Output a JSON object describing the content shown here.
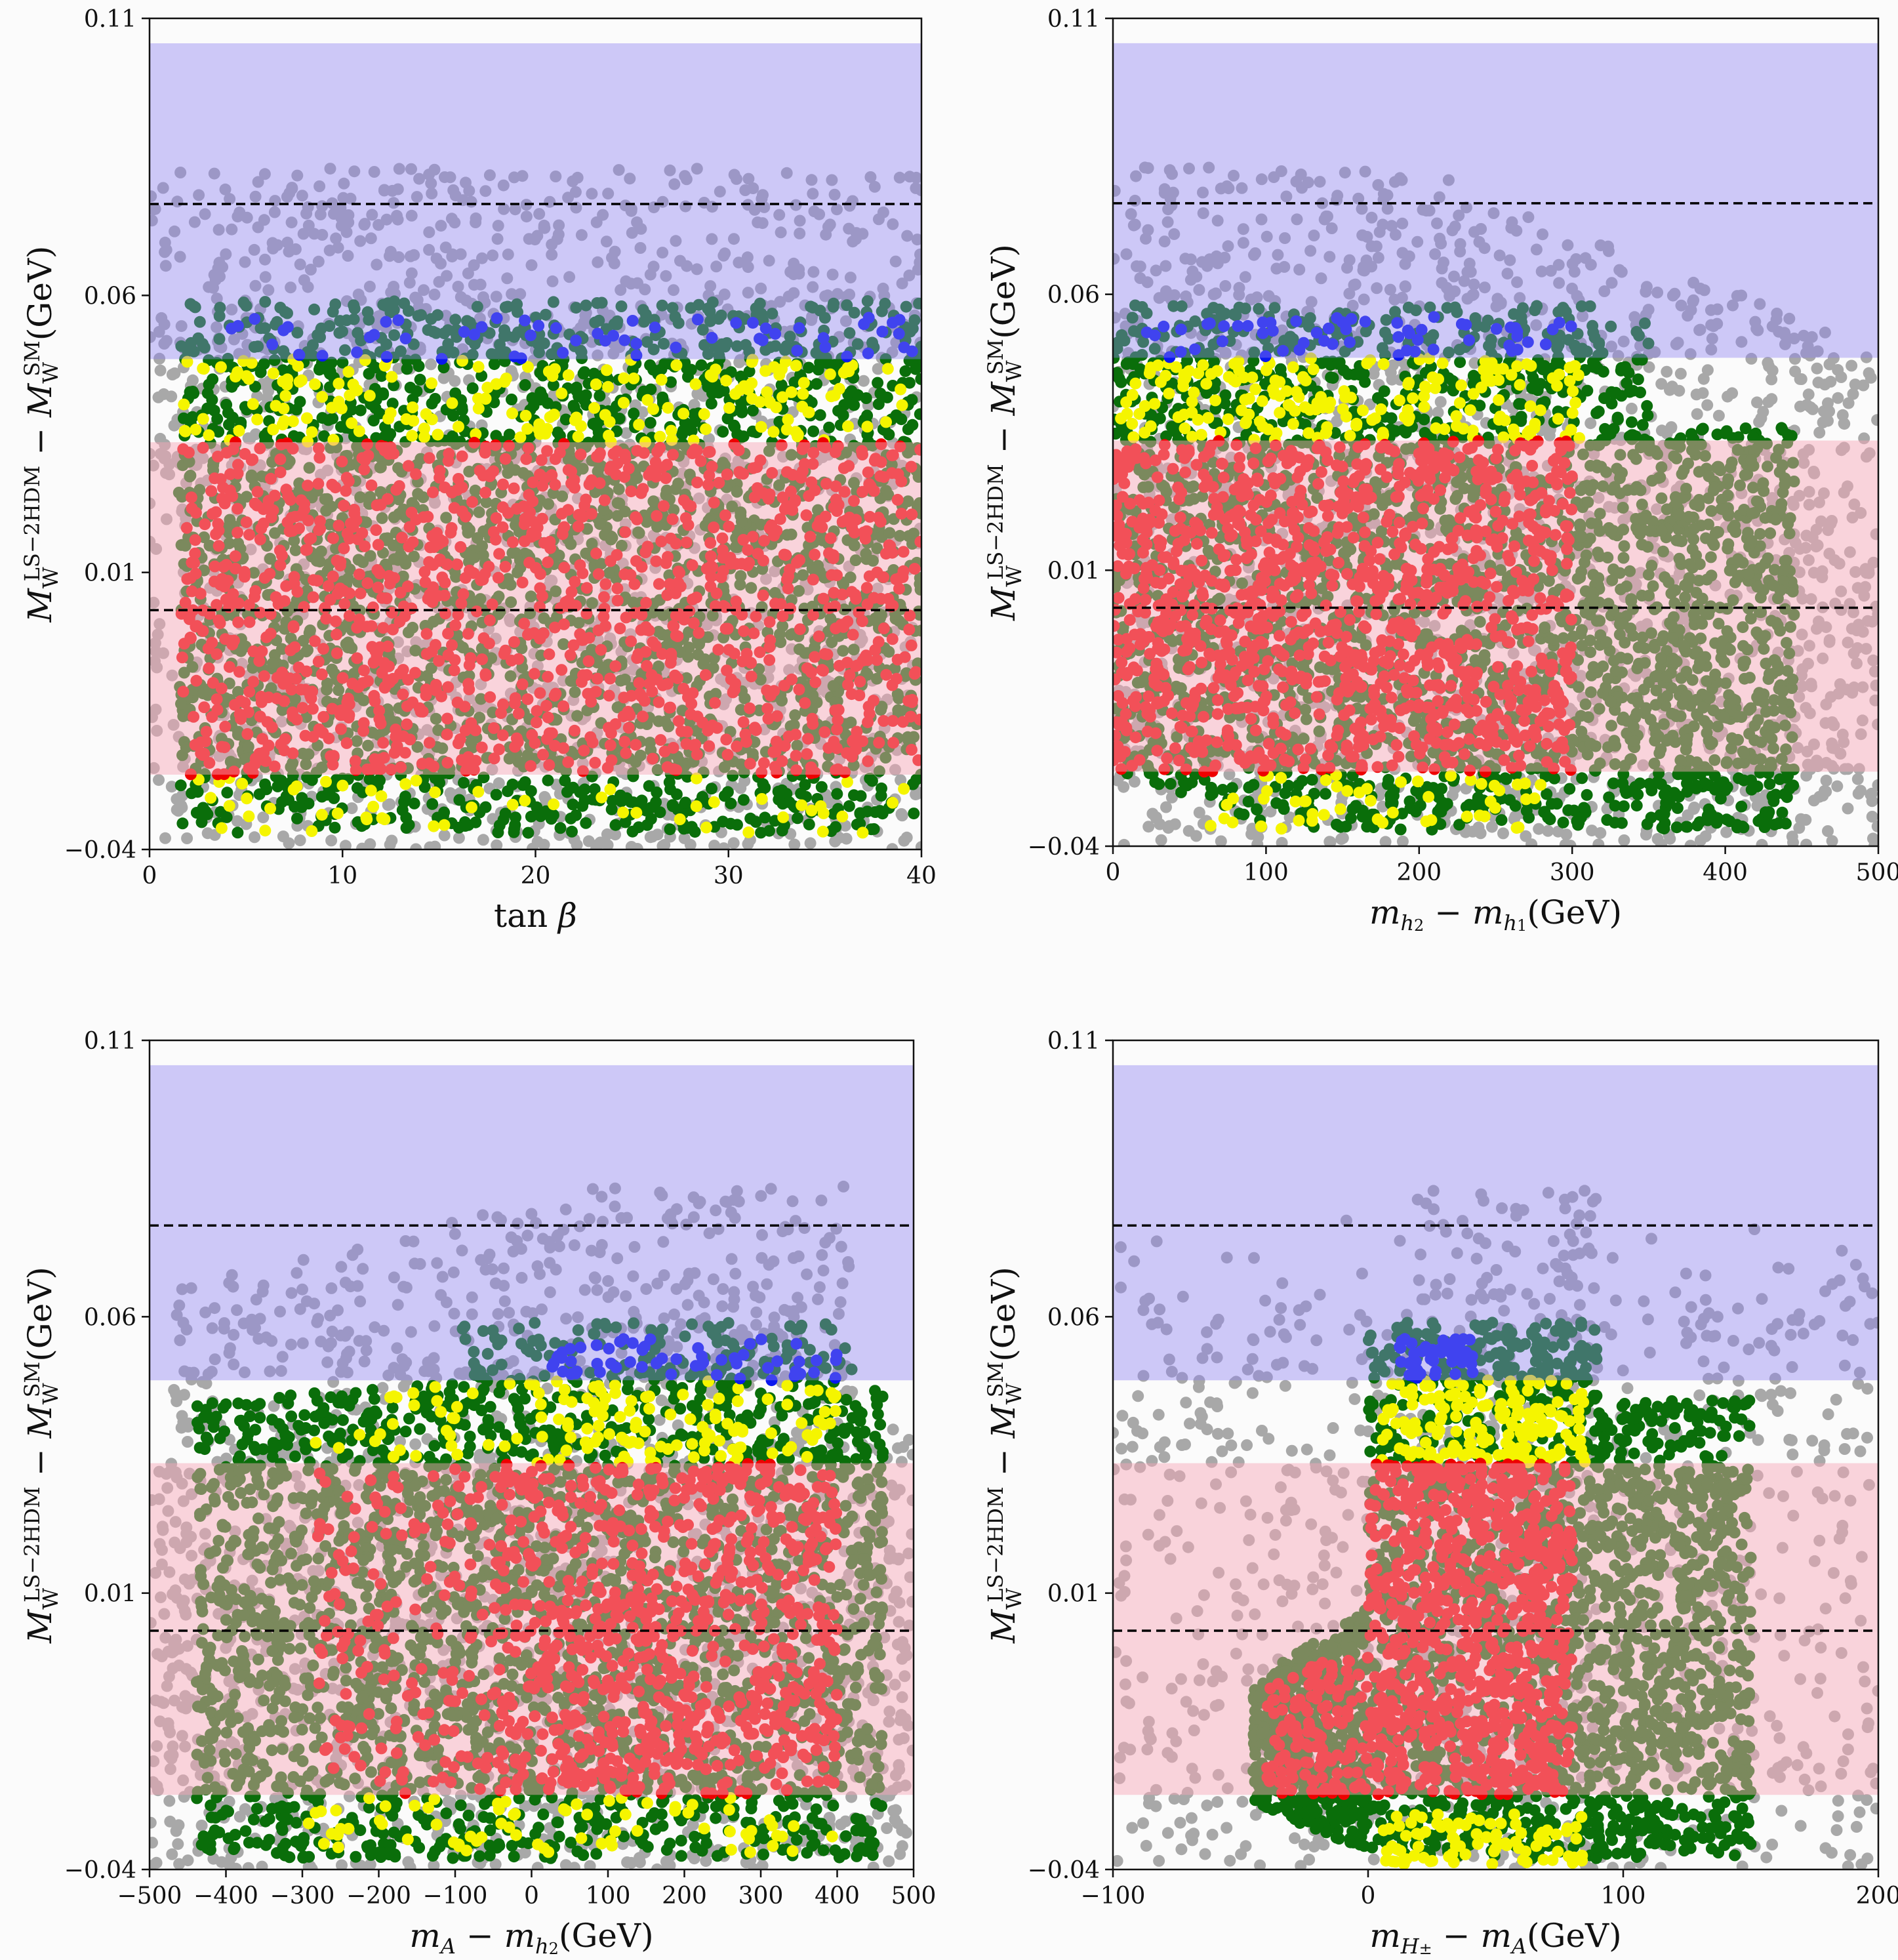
{
  "colors": {
    "background": "#fbfbfb",
    "gray_point": "#a8a8a8",
    "dark_green_point": "#0a6e0a",
    "yellow_point": "#f5f500",
    "red_point": "#ee0000",
    "blue_point": "#0a18ee",
    "purple_band": "#8c80f0",
    "pink_band": "#f7a8b8",
    "dashed_line": "#000000"
  },
  "chart_data": [
    {
      "type": "scatter",
      "ylabel": "M_W^{LS−2HDM} − M_W^{SM}(GeV)",
      "ylabel_parts": {
        "main": "M",
        "sub": "W",
        "sup": "LS−2HDM",
        "minus": "−",
        "main2": "M",
        "sub2": "W",
        "sup2": "SM",
        "unit": "(GeV)"
      },
      "xlabel_parts": {
        "text": "tan β"
      },
      "xlim": [
        0,
        40
      ],
      "ylim": [
        -0.04,
        0.11
      ],
      "xticks": [
        "0",
        "10",
        "20",
        "30",
        "40"
      ],
      "yticks": [
        "−0.04",
        "0.01",
        "0.06",
        "0.11"
      ],
      "xtick_values": [
        0,
        10,
        20,
        30,
        40
      ],
      "ytick_values": [
        -0.04,
        0.01,
        0.06,
        0.11
      ],
      "bands": [
        {
          "color": "purple",
          "y": [
            0.0485,
            0.1055
          ]
        },
        {
          "color": "pink",
          "y": [
            -0.0265,
            0.0335
          ]
        }
      ],
      "dashed_lines": [
        0.0765,
        0.0032
      ],
      "regions": {
        "gray_top": [
          0.001,
          0.99,
          0.083
        ],
        "green_x": [
          1.5,
          40
        ],
        "green_y": [
          -0.037,
          0.059
        ]
      },
      "grid": false
    },
    {
      "type": "scatter",
      "ylabel": "M_W^{LS−2HDM} − M_W^{SM}(GeV)",
      "ylabel_parts": {
        "main": "M",
        "sub": "W",
        "sup": "LS−2HDM",
        "minus": "−",
        "main2": "M",
        "sub2": "W",
        "sup2": "SM",
        "unit": "(GeV)"
      },
      "xlabel_parts": {
        "text": "m_{h2} − m_{h1}(GeV)"
      },
      "xlim": [
        0,
        500
      ],
      "ylim": [
        -0.04,
        0.11
      ],
      "xticks": [
        "0",
        "100",
        "200",
        "300",
        "400",
        "500"
      ],
      "yticks": [
        "−0.04",
        "0.01",
        "0.06",
        "0.11"
      ],
      "xtick_values": [
        0,
        100,
        200,
        300,
        400,
        500
      ],
      "ytick_values": [
        -0.04,
        0.01,
        0.06,
        0.11
      ],
      "bands": [
        {
          "color": "purple",
          "y": [
            0.0485,
            0.1055
          ]
        },
        {
          "color": "pink",
          "y": [
            -0.0265,
            0.0335
          ]
        }
      ],
      "dashed_lines": [
        0.0765,
        0.0032
      ],
      "grid": false
    },
    {
      "type": "scatter",
      "ylabel": "M_W^{LS−2HDM} − M_W^{SM}(GeV)",
      "ylabel_parts": {
        "main": "M",
        "sub": "W",
        "sup": "LS−2HDM",
        "minus": "−",
        "main2": "M",
        "sub2": "W",
        "sup2": "SM",
        "unit": "(GeV)"
      },
      "xlabel_parts": {
        "text": "m_A − m_{h2}(GeV)"
      },
      "xlim": [
        -500,
        500
      ],
      "ylim": [
        -0.04,
        0.11
      ],
      "xticks": [
        "−500",
        "−400",
        "−300",
        "−200",
        "−100",
        "0",
        "100",
        "200",
        "300",
        "400",
        "500"
      ],
      "yticks": [
        "−0.04",
        "0.01",
        "0.06",
        "0.11"
      ],
      "xtick_values": [
        -500,
        -400,
        -300,
        -200,
        -100,
        0,
        100,
        200,
        300,
        400,
        500
      ],
      "ytick_values": [
        -0.04,
        0.01,
        0.06,
        0.11
      ],
      "bands": [
        {
          "color": "purple",
          "y": [
            0.0485,
            0.1055
          ]
        },
        {
          "color": "pink",
          "y": [
            -0.0265,
            0.0335
          ]
        }
      ],
      "dashed_lines": [
        0.0765,
        0.0032
      ],
      "grid": false
    },
    {
      "type": "scatter",
      "ylabel": "M_W^{LS−2HDM} − M_W^{SM}(GeV)",
      "ylabel_parts": {
        "main": "M",
        "sub": "W",
        "sup": "LS−2HDM",
        "minus": "−",
        "main2": "M",
        "sub2": "W",
        "sup2": "SM",
        "unit": "(GeV)"
      },
      "xlabel_parts": {
        "text": "m_{H±} − m_A(GeV)"
      },
      "xlim": [
        -100,
        200
      ],
      "ylim": [
        -0.04,
        0.11
      ],
      "xticks": [
        "−100",
        "0",
        "100",
        "200"
      ],
      "yticks": [
        "−0.04",
        "0.01",
        "0.06",
        "0.11"
      ],
      "xtick_values": [
        -100,
        0,
        100,
        200
      ],
      "ytick_values": [
        -0.04,
        0.01,
        0.06,
        0.11
      ],
      "bands": [
        {
          "color": "purple",
          "y": [
            0.0485,
            0.1055
          ]
        },
        {
          "color": "pink",
          "y": [
            -0.0265,
            0.0335
          ]
        }
      ],
      "dashed_lines": [
        0.0765,
        0.0032
      ],
      "grid": false
    }
  ],
  "labels": {
    "p0": {
      "x_main": "tan",
      "x_greek": "β"
    },
    "p1": {
      "x_m1": "m",
      "x_s1": "h",
      "x_s1b": "2",
      "x_minus": "−",
      "x_m2": "m",
      "x_s2": "h",
      "x_s2b": "1",
      "x_unit": "(GeV)"
    },
    "p2": {
      "x_m1": "m",
      "x_s1": "A",
      "x_minus": "−",
      "x_m2": "m",
      "x_s2": "h",
      "x_s2b": "2",
      "x_unit": "(GeV)"
    },
    "p3": {
      "x_m1": "m",
      "x_s1": "H",
      "x_s1b": "±",
      "x_minus": "−",
      "x_m2": "m",
      "x_s2": "A",
      "x_unit": "(GeV)"
    },
    "y": {
      "main": "M",
      "sub": "W",
      "sup": "LS−2HDM",
      "minus": "−",
      "main2": "M",
      "sub2": "W",
      "sup2": "SM",
      "unit": "(GeV)"
    }
  }
}
